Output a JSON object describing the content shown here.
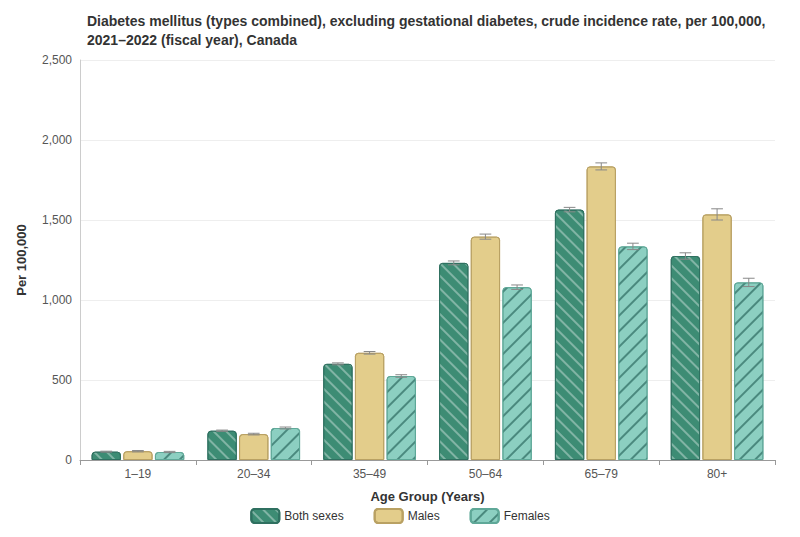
{
  "chart_data": {
    "type": "bar",
    "title": "Diabetes mellitus (types combined), excluding gestational diabetes, crude incidence rate, per 100,000, 2021–2022 (fiscal year), Canada",
    "x_label": "Age Group (Years)",
    "y_label": "Per 100,000",
    "categories": [
      "1–19",
      "20–34",
      "35–49",
      "50–64",
      "65–79",
      "80+"
    ],
    "series": [
      {
        "name": "Both sexes",
        "color": "#3d8c74",
        "values": [
          52,
          183,
          601,
          1232,
          1565,
          1275
        ],
        "errors": [
          3,
          4,
          6,
          12,
          14,
          20
        ]
      },
      {
        "name": "Males",
        "color": "#e3cd8b",
        "values": [
          55,
          162,
          670,
          1396,
          1835,
          1535
        ],
        "errors": [
          4,
          5,
          8,
          16,
          22,
          35
        ]
      },
      {
        "name": "Females",
        "color": "#8ccfc1",
        "values": [
          50,
          200,
          525,
          1080,
          1335,
          1110
        ],
        "errors": [
          4,
          6,
          8,
          14,
          20,
          26
        ]
      }
    ],
    "ylim": [
      0,
      2500
    ],
    "yticks": [
      0,
      500,
      {
        "value": 1000,
        "label": "1,000"
      },
      {
        "value": 1500,
        "label": "1,500"
      },
      {
        "value": 2000,
        "label": "2,000"
      },
      {
        "value": 2500,
        "label": "2,500"
      }
    ],
    "grid": true,
    "legend": "bottom"
  }
}
